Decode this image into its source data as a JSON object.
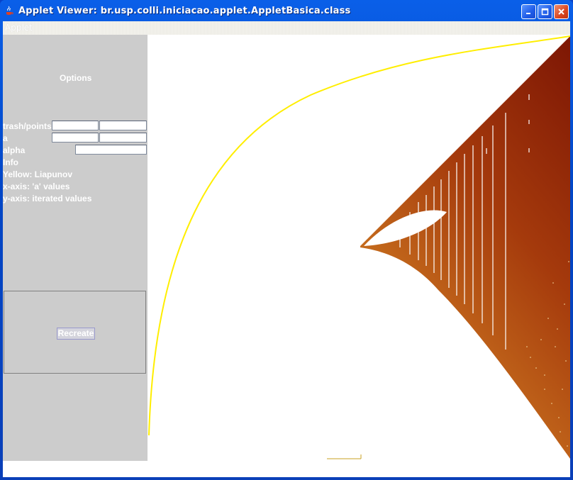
{
  "window": {
    "title": "Applet Viewer: br.usp.colli.iniciacao.applet.AppletBasica.class",
    "menu": {
      "applet_label": "Applet"
    }
  },
  "options_panel": {
    "heading": "Options",
    "fields": {
      "trash_points_label": "trash/points",
      "trash_value": "",
      "points_value": "",
      "a_label": "a",
      "a_min_value": "",
      "a_max_value": "",
      "alpha_label": "alpha",
      "alpha_value": ""
    },
    "info": {
      "label": "Info",
      "yellow": "Yellow: Liapunov",
      "x_axis": "x-axis: 'a' values",
      "y_axis": "y-axis: iterated values"
    },
    "recreate_label": "Recreate"
  },
  "plot": {
    "colors": {
      "liapunov_curve": "#ffee00",
      "fill_dark": "#8b1a05",
      "fill_light": "#e0a040",
      "background": "#ffffff"
    }
  }
}
